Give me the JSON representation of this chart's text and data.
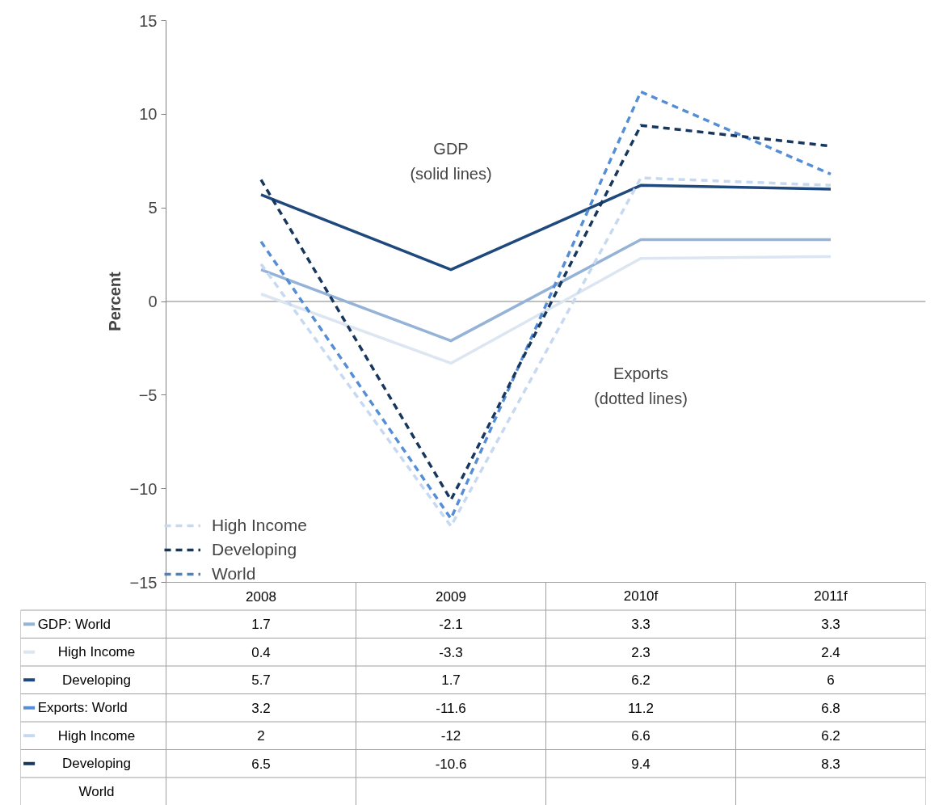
{
  "chart_data": {
    "type": "line",
    "ylabel": "Percent",
    "categories": [
      "2008",
      "2009",
      "2010f",
      "2011f"
    ],
    "ylim": [
      -15,
      15
    ],
    "yticks": [
      -15,
      -10,
      -5,
      0,
      5,
      10,
      15
    ],
    "grid": false,
    "legend": "bottom left",
    "data_labels": true,
    "marker": "none",
    "ref_lines": [
      {
        "axis": "y",
        "value": 0,
        "color": "#808080"
      }
    ],
    "annotations": [
      "GDP\n(solid lines)",
      "Exports\n(dotted lines)"
    ],
    "series": [
      {
        "name": "GDP: World",
        "color": "#95b3d7",
        "line_style": "solid",
        "values": [
          1.7,
          -2.1,
          3.3,
          3.3
        ]
      },
      {
        "name": "High Income",
        "color": "#dce6f2",
        "line_style": "solid",
        "values": [
          0.4,
          -3.3,
          2.3,
          2.4
        ]
      },
      {
        "name": "Developing",
        "color": "#1f497d",
        "line_style": "solid",
        "values": [
          5.7,
          1.7,
          6.2,
          6
        ]
      },
      {
        "name": "Exports: World",
        "color": "#558ed5",
        "line_style": "dashed",
        "values": [
          3.2,
          -11.6,
          11.2,
          6.8
        ]
      },
      {
        "name": "High Income",
        "color": "#c6d9f1",
        "line_style": "dashed",
        "values": [
          2,
          -12,
          6.6,
          6.2
        ]
      },
      {
        "name": "Developing",
        "color": "#17375e",
        "line_style": "dashed",
        "values": [
          6.5,
          -10.6,
          9.4,
          8.3
        ]
      },
      {
        "name": "World",
        "color": "#4f81bd",
        "line_style": "dashed",
        "values": [
          null,
          null,
          null,
          null
        ]
      }
    ]
  }
}
